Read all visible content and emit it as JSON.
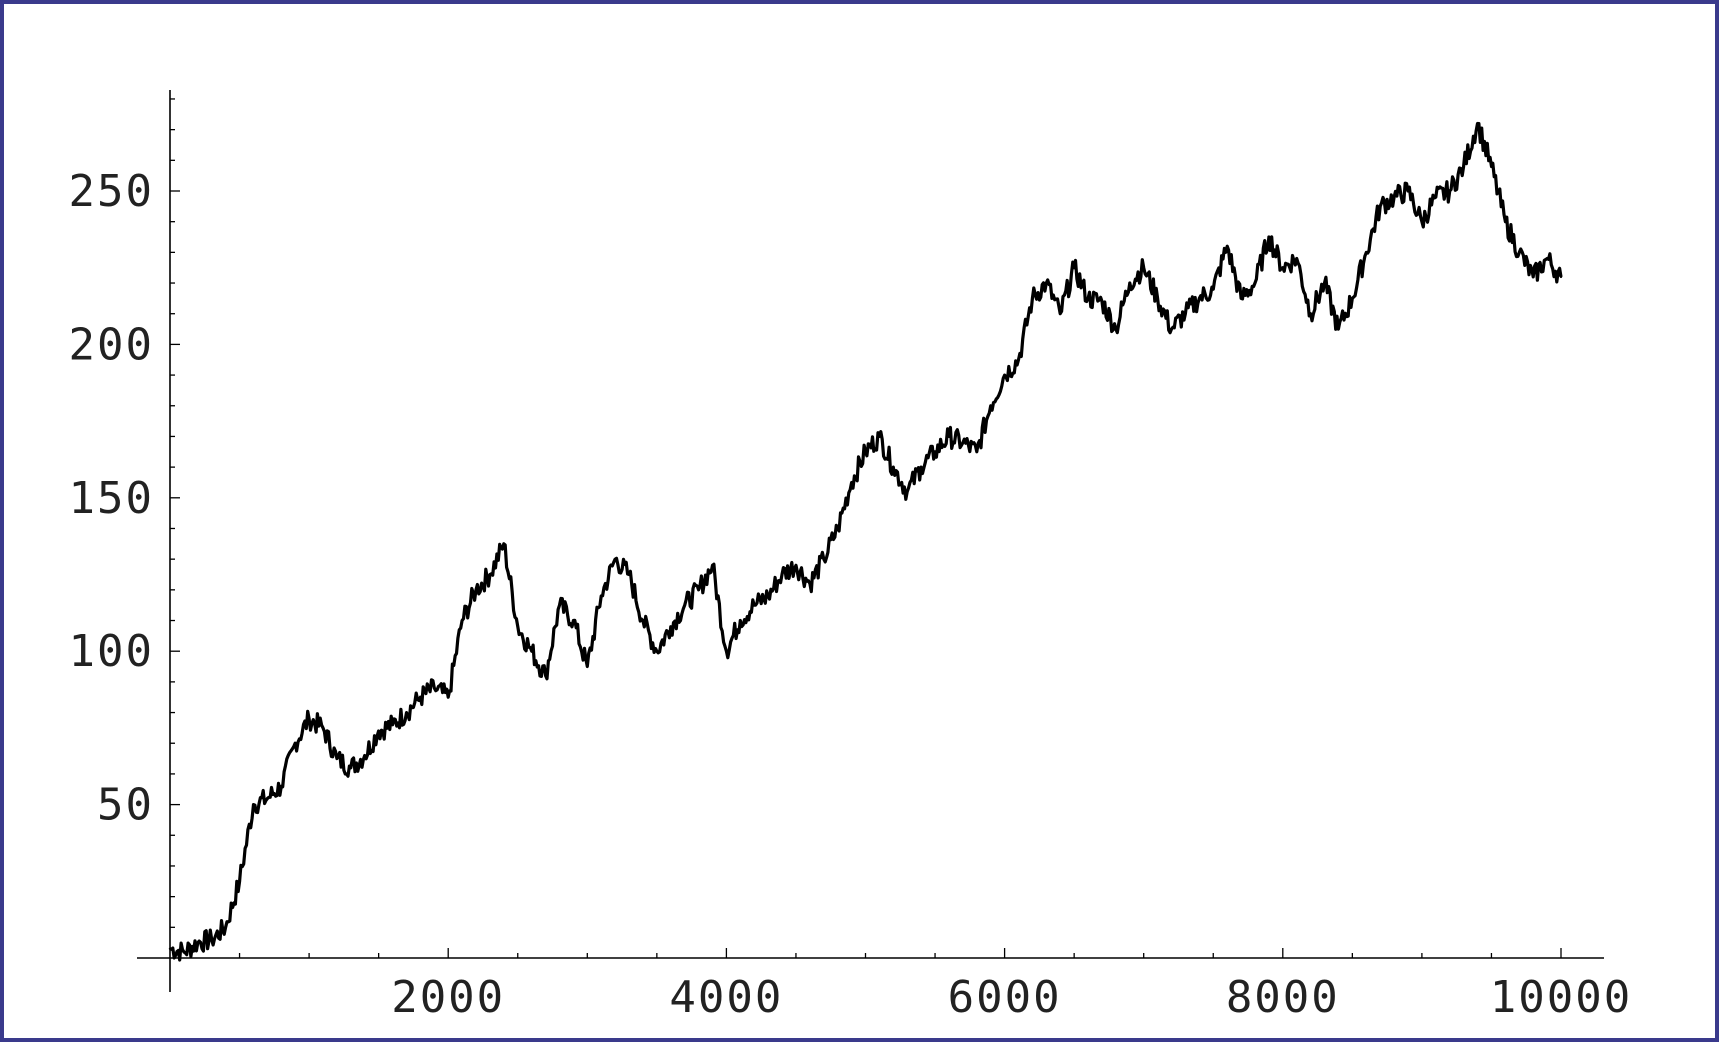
{
  "colors": {
    "frame_border": "#3a3a8c",
    "background": "#ffffff",
    "series_line": "#000000",
    "axis": "#000000"
  },
  "chart_data": {
    "type": "line",
    "title": "",
    "xlabel": "",
    "ylabel": "",
    "xlim": [
      0,
      10000
    ],
    "ylim": [
      0,
      280
    ],
    "grid": false,
    "legend": "none",
    "x_ticks": [
      2000,
      4000,
      6000,
      8000,
      10000
    ],
    "x_tick_labels": [
      "2000",
      "4000",
      "6000",
      "8000",
      "10000"
    ],
    "y_ticks": [
      50,
      100,
      150,
      200,
      250
    ],
    "y_tick_labels": [
      "50",
      "100",
      "150",
      "200",
      "250"
    ],
    "series": [
      {
        "x": [
          0,
          100,
          200,
          300,
          400,
          500,
          600,
          700,
          800,
          900,
          1000,
          1100,
          1200,
          1300,
          1400,
          1500,
          1600,
          1700,
          1800,
          1900,
          2000,
          2100,
          2200,
          2300,
          2400,
          2500,
          2600,
          2700,
          2800,
          2900,
          3000,
          3100,
          3200,
          3300,
          3400,
          3500,
          3600,
          3700,
          3800,
          3900,
          4000,
          4100,
          4200,
          4300,
          4400,
          4500,
          4600,
          4700,
          4800,
          4900,
          5000,
          5100,
          5200,
          5300,
          5400,
          5500,
          5600,
          5700,
          5800,
          5900,
          6000,
          6100,
          6200,
          6300,
          6400,
          6500,
          6600,
          6700,
          6800,
          6900,
          7000,
          7100,
          7200,
          7300,
          7400,
          7500,
          7600,
          7700,
          7800,
          7900,
          8000,
          8100,
          8200,
          8300,
          8400,
          8500,
          8600,
          8700,
          8800,
          8900,
          9000,
          9100,
          9200,
          9300,
          9400,
          9500,
          9600,
          9700,
          9800,
          9900,
          10000
        ],
        "values": [
          3,
          2,
          5,
          6,
          10,
          25,
          50,
          52,
          56,
          70,
          78,
          75,
          65,
          62,
          66,
          74,
          76,
          80,
          85,
          88,
          85,
          110,
          120,
          125,
          135,
          108,
          100,
          92,
          115,
          110,
          95,
          118,
          130,
          125,
          110,
          100,
          108,
          115,
          120,
          128,
          100,
          110,
          115,
          118,
          125,
          128,
          122,
          130,
          140,
          155,
          165,
          170,
          160,
          152,
          160,
          165,
          170,
          168,
          165,
          180,
          190,
          195,
          215,
          220,
          210,
          225,
          215,
          214,
          205,
          220,
          225,
          215,
          205,
          210,
          215,
          218,
          232,
          215,
          220,
          235,
          225,
          228,
          210,
          220,
          205,
          215,
          230,
          245,
          248,
          250,
          240,
          248,
          250,
          258,
          272,
          258,
          240,
          230,
          222,
          228,
          222
        ]
      }
    ]
  }
}
